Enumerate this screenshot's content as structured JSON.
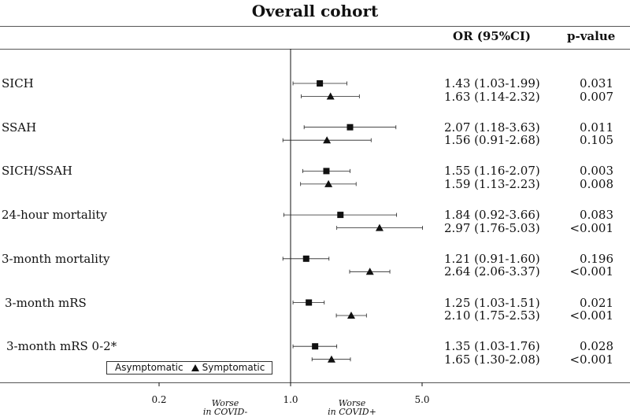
{
  "chart_data": {
    "type": "forest",
    "title": "Overall cohort",
    "columns": {
      "or": "OR (95%CI)",
      "p": "p-value"
    },
    "xscale": "log",
    "xlim": [
      0.2,
      5.0
    ],
    "xticks": [
      {
        "value": 0.2,
        "label": "0.2"
      },
      {
        "value": 1.0,
        "label": "1.0"
      },
      {
        "value": 5.0,
        "label": "5.0"
      }
    ],
    "annotations": {
      "left": [
        "Worse",
        "in COVID-"
      ],
      "right": [
        "Worse",
        "in COVID+"
      ]
    },
    "legend": [
      {
        "name": "Asymptomatic",
        "marker": "square"
      },
      {
        "name": "Symptomatic",
        "marker": "triangle"
      }
    ],
    "outcomes": [
      {
        "label": "SICH",
        "rows": [
          {
            "group": "Asymptomatic",
            "or": 1.43,
            "lo": 1.03,
            "hi": 1.99,
            "or_text": "1.43 (1.03-1.99)",
            "p": "0.031"
          },
          {
            "group": "Symptomatic",
            "or": 1.63,
            "lo": 1.14,
            "hi": 2.32,
            "or_text": "1.63 (1.14-2.32)",
            "p": "0.007"
          }
        ]
      },
      {
        "label": "SSAH",
        "rows": [
          {
            "group": "Asymptomatic",
            "or": 2.07,
            "lo": 1.18,
            "hi": 3.63,
            "or_text": "2.07 (1.18-3.63)",
            "p": "0.011"
          },
          {
            "group": "Symptomatic",
            "or": 1.56,
            "lo": 0.91,
            "hi": 2.68,
            "or_text": "1.56 (0.91-2.68)",
            "p": "0.105"
          }
        ]
      },
      {
        "label": "SICH/SSAH",
        "rows": [
          {
            "group": "Asymptomatic",
            "or": 1.55,
            "lo": 1.16,
            "hi": 2.07,
            "or_text": "1.55 (1.16-2.07)",
            "p": "0.003"
          },
          {
            "group": "Symptomatic",
            "or": 1.59,
            "lo": 1.13,
            "hi": 2.23,
            "or_text": "1.59 (1.13-2.23)",
            "p": "0.008"
          }
        ]
      },
      {
        "label": "24-hour mortality",
        "rows": [
          {
            "group": "Asymptomatic",
            "or": 1.84,
            "lo": 0.92,
            "hi": 3.66,
            "or_text": "1.84 (0.92-3.66)",
            "p": "0.083"
          },
          {
            "group": "Symptomatic",
            "or": 2.97,
            "lo": 1.76,
            "hi": 5.03,
            "or_text": "2.97 (1.76-5.03)",
            "p": "<0.001"
          }
        ]
      },
      {
        "label": "3-month mortality",
        "rows": [
          {
            "group": "Asymptomatic",
            "or": 1.21,
            "lo": 0.91,
            "hi": 1.6,
            "or_text": "1.21 (0.91-1.60)",
            "p": "0.196"
          },
          {
            "group": "Symptomatic",
            "or": 2.64,
            "lo": 2.06,
            "hi": 3.37,
            "or_text": "2.64 (2.06-3.37)",
            "p": "<0.001"
          }
        ]
      },
      {
        "label": "3-month mRS",
        "rows": [
          {
            "group": "Asymptomatic",
            "or": 1.25,
            "lo": 1.03,
            "hi": 1.51,
            "or_text": "1.25 (1.03-1.51)",
            "p": "0.021"
          },
          {
            "group": "Symptomatic",
            "or": 2.1,
            "lo": 1.75,
            "hi": 2.53,
            "or_text": "2.10 (1.75-2.53)",
            "p": "<0.001"
          }
        ]
      },
      {
        "label": "3-month mRS 0-2*",
        "rows": [
          {
            "group": "Asymptomatic",
            "or": 1.35,
            "lo": 1.03,
            "hi": 1.76,
            "or_text": "1.35 (1.03-1.76)",
            "p": "0.028"
          },
          {
            "group": "Symptomatic",
            "or": 1.65,
            "lo": 1.3,
            "hi": 2.08,
            "or_text": "1.65 (1.30-2.08)",
            "p": "<0.001"
          }
        ]
      }
    ]
  }
}
